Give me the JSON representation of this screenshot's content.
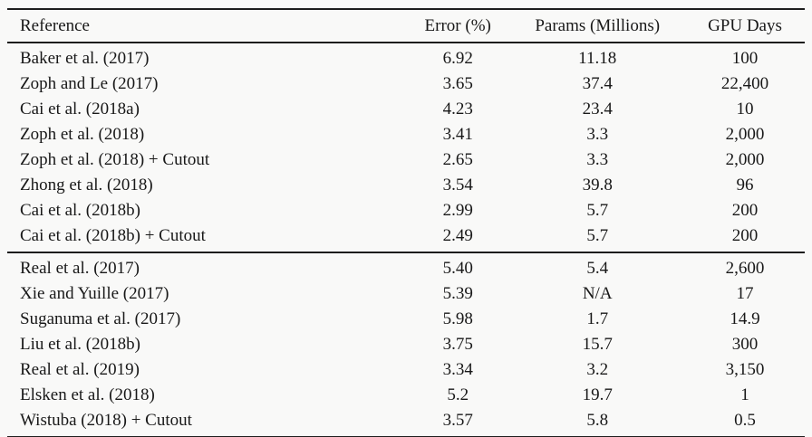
{
  "page": {
    "background_color": "#f9f9f8",
    "rule_color": "#1d1d1d",
    "text_color": "#181818"
  },
  "table": {
    "columns": [
      "Reference",
      "Error (%)",
      "Params (Millions)",
      "GPU Days"
    ],
    "column_keys": [
      "reference",
      "error-percent",
      "params-millions",
      "gpu-days"
    ],
    "groups": [
      {
        "rows": [
          [
            "Baker et al. (2017)",
            "6.92",
            "11.18",
            "100"
          ],
          [
            "Zoph and Le (2017)",
            "3.65",
            "37.4",
            "22,400"
          ],
          [
            "Cai et al. (2018a)",
            "4.23",
            "23.4",
            "10"
          ],
          [
            "Zoph et al. (2018)",
            "3.41",
            "3.3",
            "2,000"
          ],
          [
            "Zoph et al. (2018) + Cutout",
            "2.65",
            "3.3",
            "2,000"
          ],
          [
            "Zhong et al. (2018)",
            "3.54",
            "39.8",
            "96"
          ],
          [
            "Cai et al. (2018b)",
            "2.99",
            "5.7",
            "200"
          ],
          [
            "Cai et al. (2018b) + Cutout",
            "2.49",
            "5.7",
            "200"
          ]
        ]
      },
      {
        "rows": [
          [
            "Real et al. (2017)",
            "5.40",
            "5.4",
            "2,600"
          ],
          [
            "Xie and Yuille (2017)",
            "5.39",
            "N/A",
            "17"
          ],
          [
            "Suganuma et al. (2017)",
            "5.98",
            "1.7",
            "14.9"
          ],
          [
            "Liu et al. (2018b)",
            "3.75",
            "15.7",
            "300"
          ],
          [
            "Real et al. (2019)",
            "3.34",
            "3.2",
            "3,150"
          ],
          [
            "Elsken et al. (2018)",
            "5.2",
            "19.7",
            "1"
          ],
          [
            "Wistuba (2018) + Cutout",
            "3.57",
            "5.8",
            "0.5"
          ]
        ]
      }
    ]
  }
}
